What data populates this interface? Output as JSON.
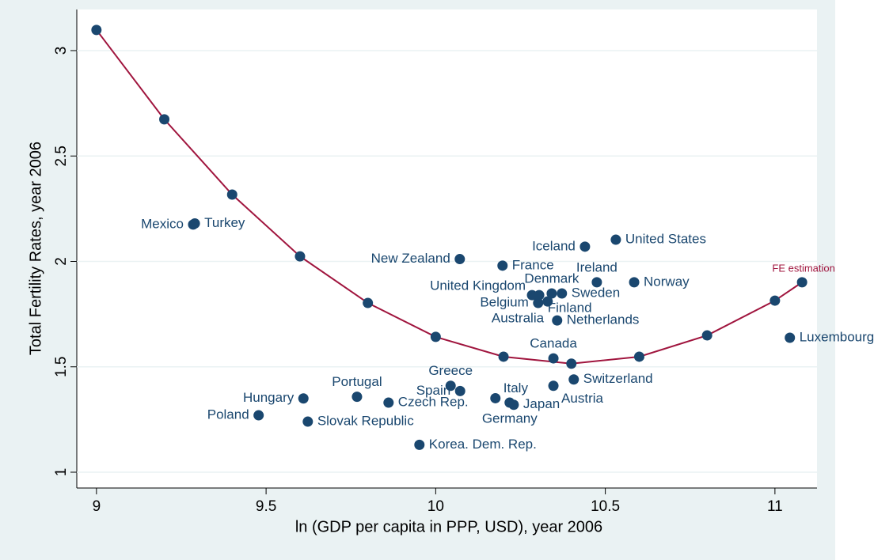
{
  "chart_data": {
    "type": "scatter",
    "xlabel": "ln (GDP per capita in PPP, USD), year 2006",
    "ylabel": "Total Fertility Rates, year 2006",
    "xlim": [
      8.942,
      11.124
    ],
    "ylim": [
      0.925,
      3.195
    ],
    "xticks": [
      9,
      9.5,
      10,
      10.5,
      11
    ],
    "yticks": [
      1,
      1.5,
      2,
      2.5,
      3
    ],
    "grid": true,
    "series": [
      {
        "name": "FE estimation",
        "color": "#a0153e",
        "marker_color": "#1a476f",
        "x": [
          9,
          9.2,
          9.4,
          9.6,
          9.8,
          10,
          10.2,
          10.4,
          10.6,
          10.8,
          11,
          11.08
        ],
        "values": [
          3.098,
          2.674,
          2.317,
          2.024,
          1.803,
          1.642,
          1.548,
          1.515,
          1.548,
          1.649,
          1.814,
          1.901
        ]
      },
      {
        "color": "#1a476f",
        "labels": [
          "Mexico",
          "Turkey",
          "New Zealand",
          "France",
          "Iceland",
          "United States",
          "Ireland",
          "Norway",
          "United Kingdom",
          "Denmark",
          "Sweden",
          "Belgium",
          "Finland",
          "Australia",
          "Netherlands",
          "Canada",
          "Switzerland",
          "Austria",
          "Greece",
          "Spain",
          "Czech Rep.",
          "Italy",
          "Germany",
          "Japan",
          "Hungary",
          "Portugal",
          "Poland",
          "Slovak Republic",
          "Korea. Dem. Rep.",
          "Luxembourg"
        ],
        "x": [
          9.285,
          9.29,
          10.071,
          10.197,
          10.44,
          10.531,
          10.475,
          10.585,
          10.284,
          10.342,
          10.372,
          10.302,
          10.33,
          10.305,
          10.358,
          10.347,
          10.407,
          10.347,
          10.044,
          10.072,
          9.861,
          10.176,
          10.218,
          10.23,
          9.61,
          9.768,
          9.478,
          9.623,
          9.952,
          11.044
        ],
        "values": [
          2.175,
          2.18,
          2.011,
          1.98,
          2.07,
          2.103,
          1.901,
          1.901,
          1.84,
          1.848,
          1.848,
          1.803,
          1.81,
          1.84,
          1.72,
          1.54,
          1.44,
          1.41,
          1.41,
          1.385,
          1.33,
          1.351,
          1.33,
          1.32,
          1.35,
          1.358,
          1.27,
          1.24,
          1.13,
          1.638
        ]
      }
    ]
  }
}
